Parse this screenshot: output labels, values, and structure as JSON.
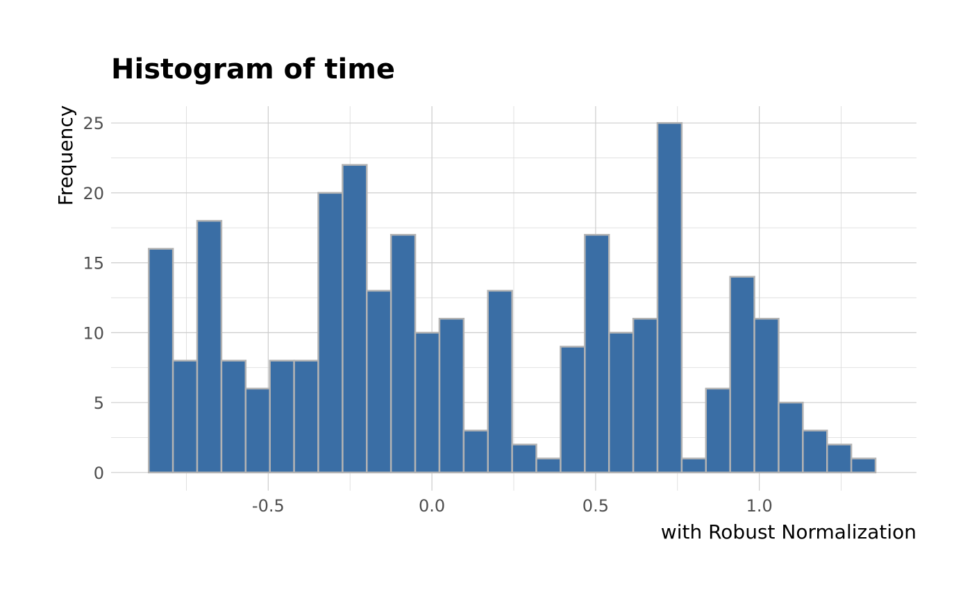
{
  "chart_data": {
    "type": "bar",
    "subtype": "histogram",
    "title": "Histogram of time",
    "xlabel": "with Robust Normalization",
    "ylabel": "Frequency",
    "bin_width": 0.074,
    "first_bin_left": -0.865,
    "values": [
      16,
      8,
      18,
      8,
      6,
      8,
      8,
      20,
      22,
      13,
      17,
      10,
      11,
      3,
      13,
      2,
      1,
      9,
      17,
      10,
      11,
      25,
      1,
      6,
      14,
      11,
      5,
      3,
      2,
      1
    ],
    "xlim": [
      -0.98,
      1.48
    ],
    "ylim": [
      -1.3,
      26.2
    ],
    "x_ticks": [
      -0.5,
      0.0,
      0.5,
      1.0
    ],
    "x_tick_labels": [
      "-0.5",
      "0.0",
      "0.5",
      "1.0"
    ],
    "y_ticks": [
      0,
      5,
      10,
      15,
      20,
      25
    ],
    "y_tick_labels": [
      "0",
      "5",
      "10",
      "15",
      "20",
      "25"
    ],
    "grid": true,
    "fill_color": "#3a6ea5",
    "edge_color": "#b3b3b3",
    "grid_color": "#cccccc"
  }
}
